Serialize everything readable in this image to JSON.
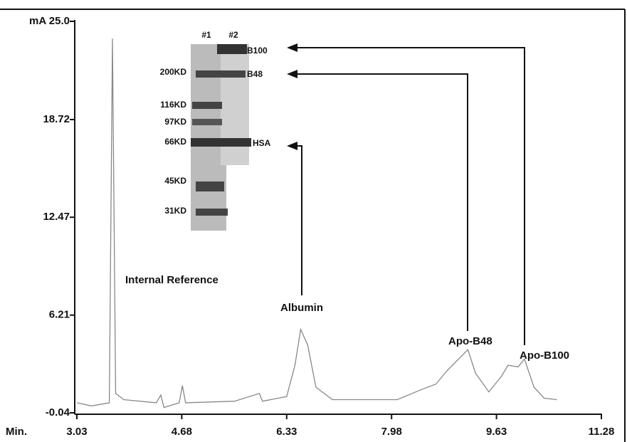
{
  "chart_data": {
    "type": "line",
    "x_label": "Min.",
    "xlim": [
      3.03,
      11.28
    ],
    "xticks": [
      3.03,
      4.68,
      6.33,
      7.98,
      9.63,
      11.28
    ],
    "ylim": [
      -0.04,
      25.0
    ],
    "yticks": [
      -0.04,
      6.21,
      12.47,
      18.72,
      {
        "value": 25.0,
        "label": "mA 25.0"
      }
    ],
    "color": "#888888",
    "x": [
      3.03,
      3.26,
      3.54,
      3.59,
      3.64,
      3.77,
      4.28,
      4.35,
      4.4,
      4.64,
      4.69,
      4.74,
      5.51,
      5.9,
      5.95,
      6.33,
      6.46,
      6.55,
      6.66,
      6.79,
      7.05,
      8.07,
      8.48,
      8.68,
      8.84,
      9.18,
      9.3,
      9.51,
      9.71,
      9.81,
      9.97,
      10.07,
      10.22,
      10.38,
      10.58
    ],
    "values": [
      0.6,
      0.4,
      0.6,
      23.9,
      1.2,
      0.8,
      0.6,
      1.1,
      0.3,
      0.6,
      1.7,
      0.6,
      0.7,
      1.2,
      0.7,
      1.0,
      3.0,
      5.3,
      4.3,
      1.6,
      0.8,
      0.8,
      1.5,
      1.8,
      2.6,
      4.0,
      2.5,
      1.3,
      2.3,
      3.0,
      2.9,
      3.4,
      1.6,
      0.9,
      0.8
    ],
    "annotations": [
      "Internal Reference",
      "Albumin",
      "Apo-B48",
      "Apo-B100"
    ],
    "gel": {
      "lanes": [
        "#1",
        "#2"
      ],
      "markers": [
        "200KD",
        "116KD",
        "97KD",
        "66KD",
        "45KD",
        "31KD"
      ],
      "bands": [
        "B100",
        "B48",
        "HSA"
      ]
    }
  }
}
